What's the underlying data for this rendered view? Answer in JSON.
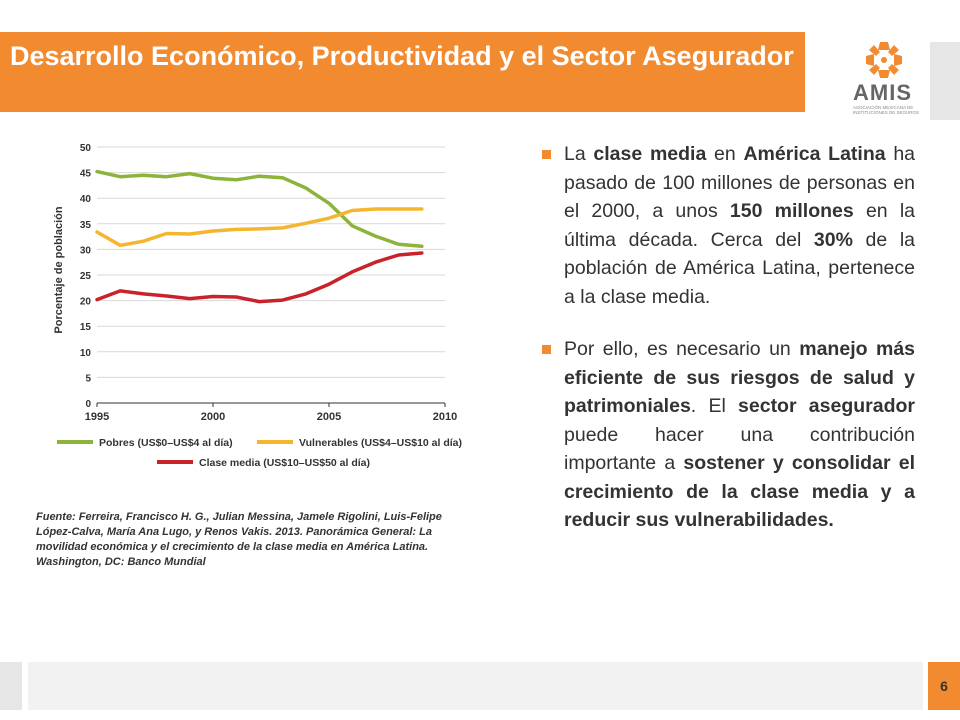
{
  "header": {
    "title": "Desarrollo Económico, Productividad y el Sector Asegurador",
    "brand": "AMIS",
    "brand_subtitle": "ASOCIACIÓN MEXICANA DE INSTITUCIONES DE SEGUROS",
    "accent_color": "#F28A30"
  },
  "chart_data": {
    "type": "line",
    "ylabel": "Porcentaje de población",
    "xlabel": "",
    "xlim": [
      1995,
      2010
    ],
    "ylim": [
      0,
      50
    ],
    "xticks": [
      "1995",
      "2000",
      "2005",
      "2010"
    ],
    "yticks": [
      "0",
      "5",
      "10",
      "15",
      "20",
      "25",
      "30",
      "35",
      "40",
      "45",
      "50"
    ],
    "grid": true,
    "legend_position": "bottom",
    "series": [
      {
        "name": "Pobres (US$0–US$4 al día)",
        "color": "#8DB33A",
        "x": [
          1995,
          1996,
          1997,
          1998,
          1999,
          2000,
          2001,
          2002,
          2003,
          2004,
          2005,
          2006,
          2007,
          2008,
          2009
        ],
        "y": [
          45.2,
          44.2,
          44.5,
          44.2,
          44.8,
          43.9,
          43.6,
          44.3,
          44.0,
          42.0,
          39.0,
          34.6,
          32.6,
          31.0,
          30.6
        ]
      },
      {
        "name": "Vulnerables (US$4–US$10 al día)",
        "color": "#F5B52E",
        "x": [
          1995,
          1996,
          1997,
          1998,
          1999,
          2000,
          2001,
          2002,
          2003,
          2004,
          2005,
          2006,
          2007,
          2008,
          2009
        ],
        "y": [
          33.4,
          30.8,
          31.6,
          33.1,
          33.0,
          33.6,
          33.9,
          34.0,
          34.2,
          35.1,
          36.1,
          37.6,
          37.9,
          37.9,
          37.9
        ]
      },
      {
        "name": "Clase media (US$10–US$50 al día)",
        "color": "#C8232B",
        "x": [
          1995,
          1996,
          1997,
          1998,
          1999,
          2000,
          2001,
          2002,
          2003,
          2004,
          2005,
          2006,
          2007,
          2008,
          2009
        ],
        "y": [
          20.2,
          21.9,
          21.3,
          20.9,
          20.4,
          20.8,
          20.7,
          19.8,
          20.1,
          21.3,
          23.2,
          25.6,
          27.5,
          28.9,
          29.3
        ]
      }
    ]
  },
  "source": {
    "text": "Fuente: Ferreira, Francisco H. G., Julian Messina, Jamele Rigolini, Luis-Felipe López-Calva, María Ana Lugo, y Renos Vakis. 2013. Panorámica General: La movilidad económica y el crecimiento de la clase media en América Latina. Washington, DC: Banco Mundial"
  },
  "bullets": [
    {
      "segments": [
        {
          "t": "La ",
          "b": false
        },
        {
          "t": "clase media",
          "b": true
        },
        {
          "t": " en ",
          "b": false
        },
        {
          "t": "América Latina",
          "b": true
        },
        {
          "t": " ha pasado de 100 millones de personas en el 2000, a unos ",
          "b": false
        },
        {
          "t": "150 millones",
          "b": true
        },
        {
          "t": " en la última década. Cerca del ",
          "b": false
        },
        {
          "t": "30%",
          "b": true
        },
        {
          "t": " de la población de América Latina, pertenece a la clase media.",
          "b": false
        }
      ]
    },
    {
      "segments": [
        {
          "t": "Por ello, es necesario un ",
          "b": false
        },
        {
          "t": "manejo más eficiente de sus riesgos de salud y patrimoniales",
          "b": true
        },
        {
          "t": ". El ",
          "b": false
        },
        {
          "t": "sector asegurador",
          "b": true
        },
        {
          "t": " puede hacer una contribución importante a ",
          "b": false
        },
        {
          "t": "sostener y consolidar el crecimiento de la clase media y a reducir sus vulnerabilidades.",
          "b": true
        }
      ]
    }
  ],
  "footer": {
    "page_number": "6"
  }
}
